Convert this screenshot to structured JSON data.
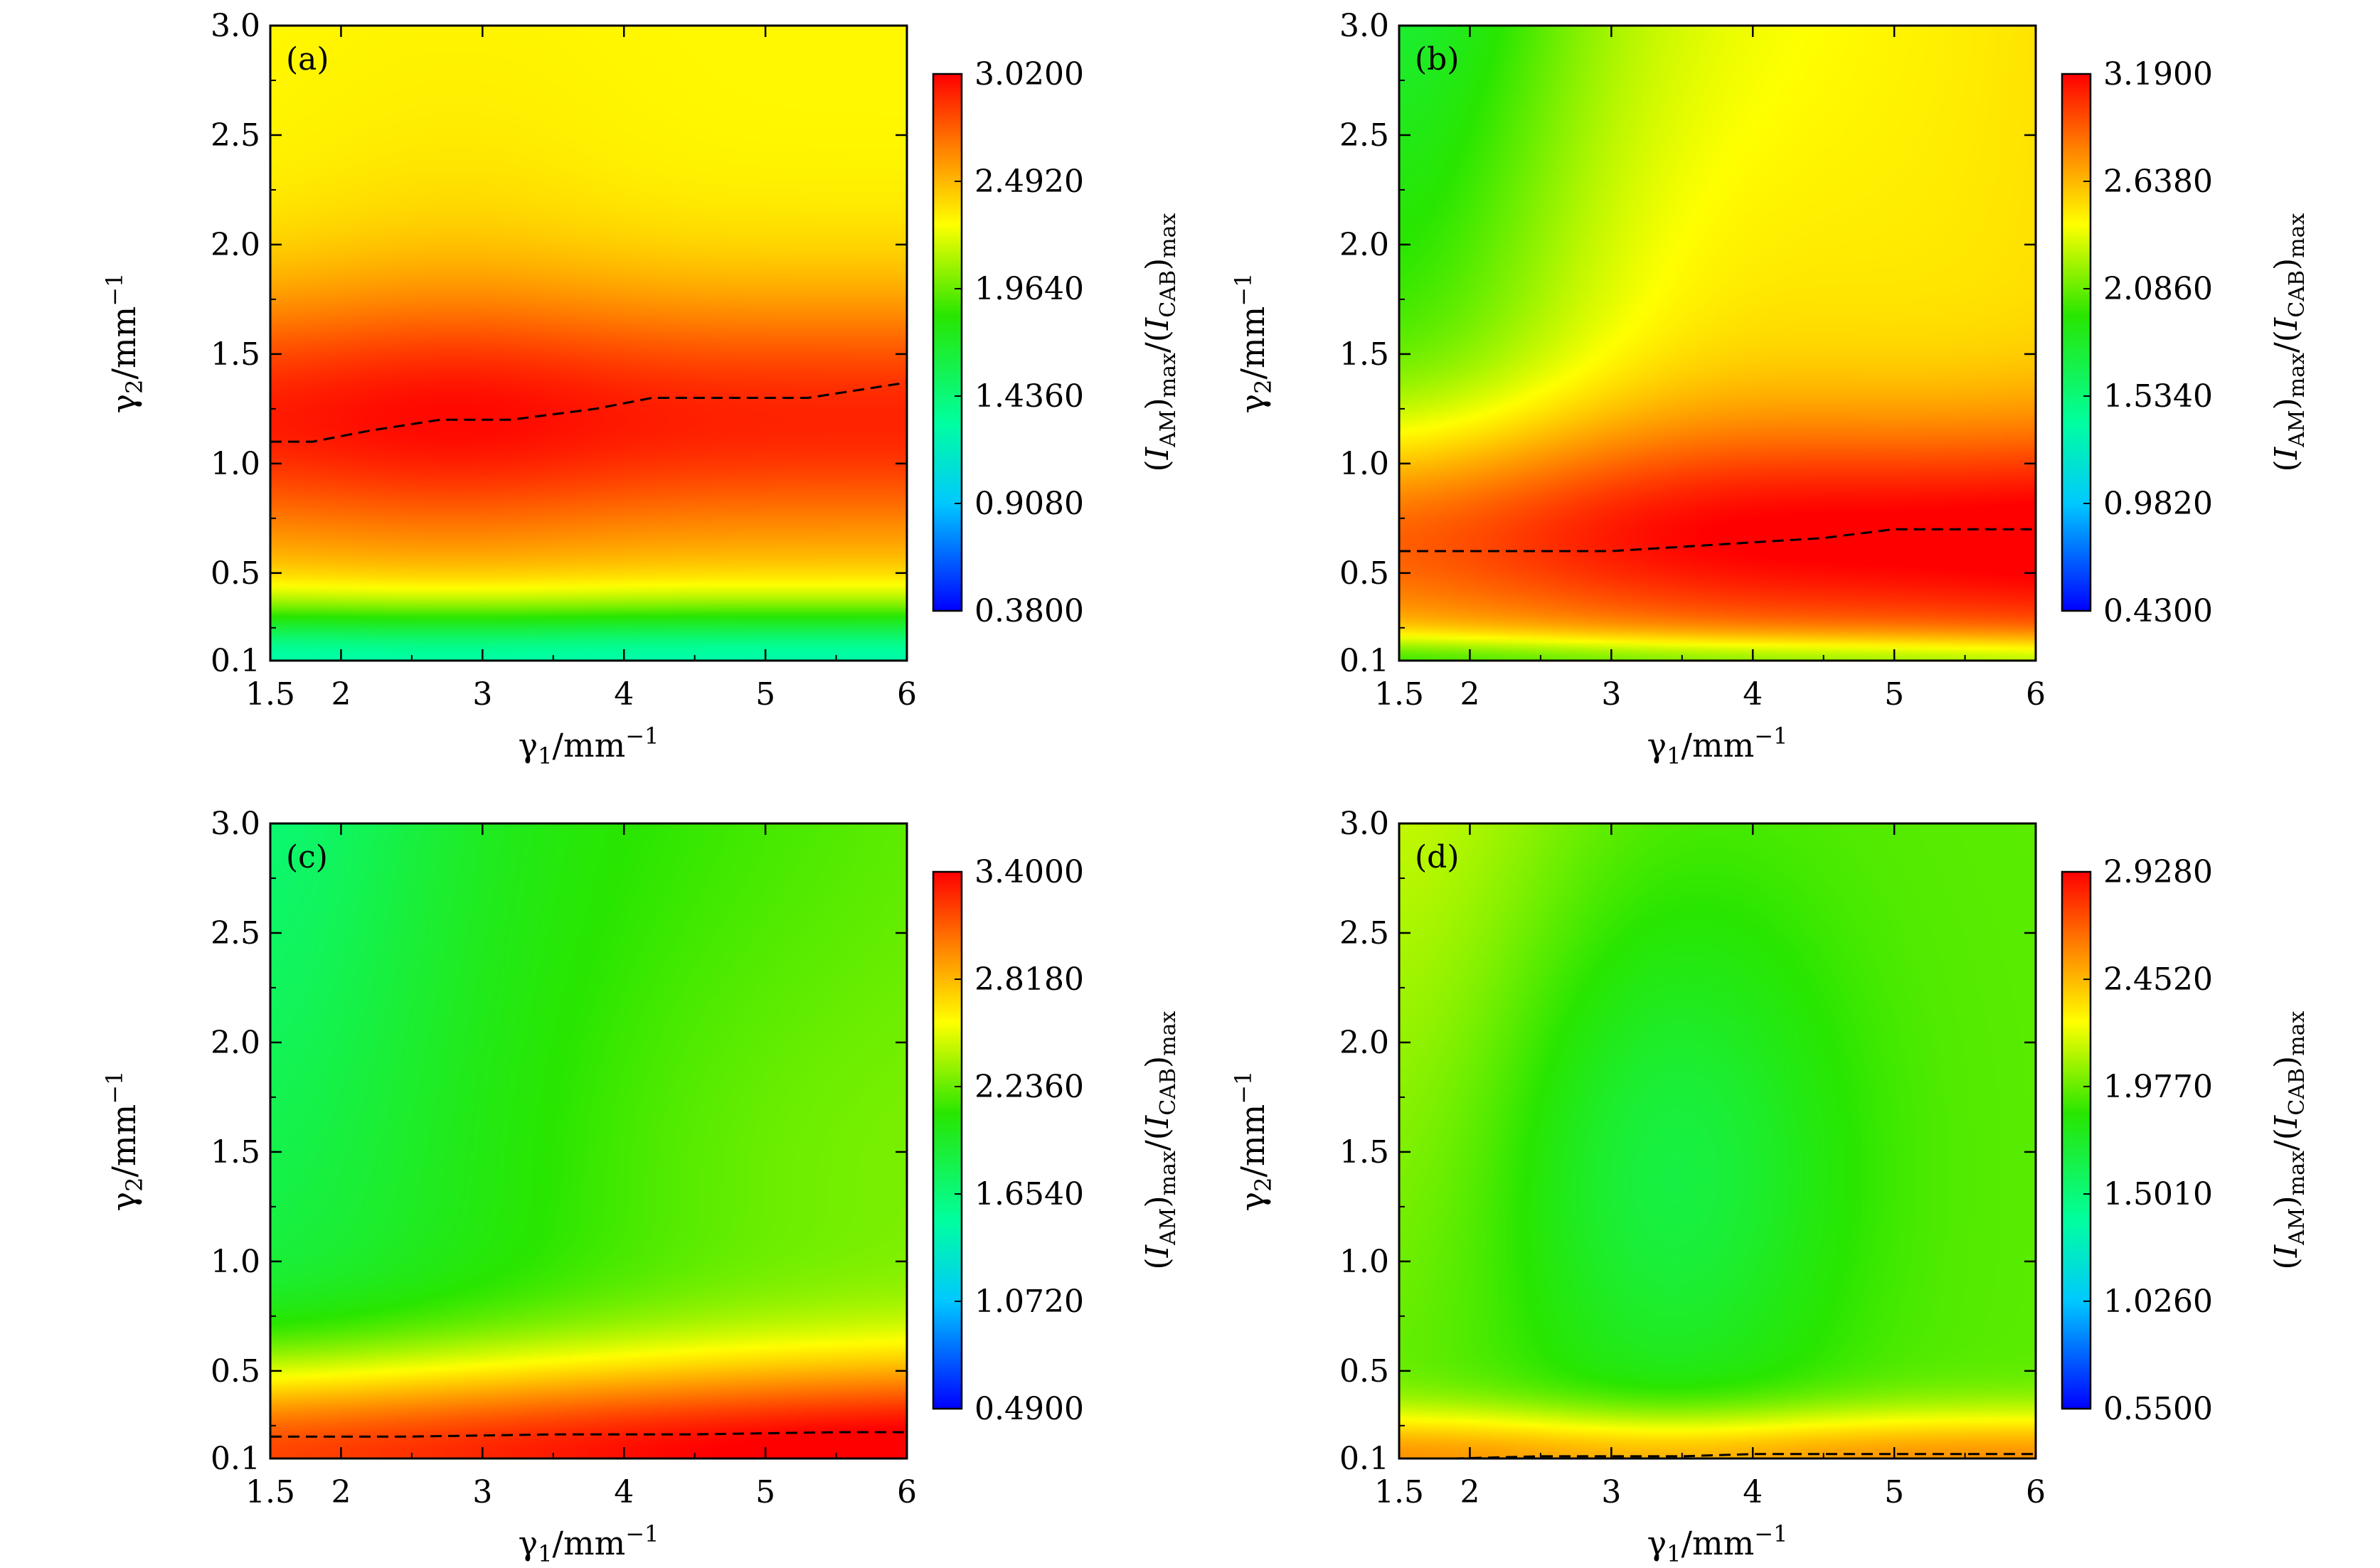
{
  "figure": {
    "x_label_main": "γ",
    "x_label_sub": "1",
    "x_label_unit": "/mm",
    "x_label_exp": "−1",
    "y_label_main": "γ",
    "y_label_sub": "2",
    "y_label_unit": "/mm",
    "y_label_exp": "−1",
    "cb_label_open1": "(",
    "cb_label_I1": "I",
    "cb_label_sub1": "AM",
    "cb_label_close1": ")",
    "cb_label_max1": "max",
    "cb_label_slash": "/(",
    "cb_label_I2": "I",
    "cb_label_sub2": "CAB",
    "cb_label_close2": ")",
    "cb_label_max2": "max"
  },
  "chart_data": [
    {
      "type": "heatmap",
      "panel_label": "(a)",
      "xlim": [
        1.5,
        6
      ],
      "ylim": [
        0.1,
        3.0
      ],
      "xticks": [
        1.5,
        2,
        3,
        4,
        5,
        6
      ],
      "xtick_labels": [
        "1.5",
        "2",
        "3",
        "4",
        "5",
        "6"
      ],
      "yticks": [
        0.1,
        0.5,
        1.0,
        1.5,
        2.0,
        2.5,
        3.0
      ],
      "ytick_labels": [
        "0.1",
        "0.5",
        "1.0",
        "1.5",
        "2.0",
        "2.5",
        "3.0"
      ],
      "colorbar": {
        "min": 0.38,
        "max": 3.02,
        "ticks": [
          0.38,
          0.908,
          1.436,
          1.964,
          2.492,
          3.02
        ],
        "tick_labels": [
          "0.3800",
          "0.9080",
          "1.4360",
          "1.9640",
          "2.4920",
          "3.0200"
        ]
      },
      "field": {
        "base": 2.3,
        "ridge_y": 1.2,
        "ridge_amp": 0.62,
        "ridge_width": 0.6,
        "low_y_drop": 1.05,
        "low_y_scale": 0.25,
        "peak_x": 2.8,
        "peak_amp": 0.08,
        "peak_width": 1.2,
        "x_slope": 0.0,
        "left_top_cool": 0.0
      },
      "optimum_line": {
        "x": [
          1.5,
          1.8,
          2.2,
          2.7,
          3.2,
          3.8,
          4.2,
          4.7,
          5.3,
          6.0
        ],
        "y": [
          1.1,
          1.1,
          1.15,
          1.2,
          1.2,
          1.25,
          1.3,
          1.3,
          1.3,
          1.37
        ]
      }
    },
    {
      "type": "heatmap",
      "panel_label": "(b)",
      "xlim": [
        1.5,
        6
      ],
      "ylim": [
        0.1,
        3.0
      ],
      "xticks": [
        1.5,
        2,
        3,
        4,
        5,
        6
      ],
      "xtick_labels": [
        "1.5",
        "2",
        "3",
        "4",
        "5",
        "6"
      ],
      "yticks": [
        0.1,
        0.5,
        1.0,
        1.5,
        2.0,
        2.5,
        3.0
      ],
      "ytick_labels": [
        "0.1",
        "0.5",
        "1.0",
        "1.5",
        "2.0",
        "2.5",
        "3.0"
      ],
      "colorbar": {
        "min": 0.43,
        "max": 3.19,
        "ticks": [
          0.43,
          0.982,
          1.534,
          2.086,
          2.638,
          3.19
        ],
        "tick_labels": [
          "0.4300",
          "0.9820",
          "1.5340",
          "2.0860",
          "2.6380",
          "3.1900"
        ]
      },
      "field": {
        "base": 2.35,
        "ridge_y": 0.65,
        "ridge_amp": 0.75,
        "ridge_width": 0.55,
        "low_y_drop": 0.5,
        "low_y_scale": 0.12,
        "peak_x": 3.6,
        "peak_amp": 0.12,
        "peak_width": 1.5,
        "x_slope": 0.06,
        "left_top_cool": 0.45
      },
      "optimum_line": {
        "x": [
          1.5,
          2.2,
          3.0,
          3.5,
          4.0,
          4.5,
          5.0,
          5.5,
          6.0
        ],
        "y": [
          0.6,
          0.6,
          0.6,
          0.62,
          0.64,
          0.66,
          0.7,
          0.7,
          0.7
        ]
      }
    },
    {
      "type": "heatmap",
      "panel_label": "(c)",
      "xlim": [
        1.5,
        6
      ],
      "ylim": [
        0.1,
        3.0
      ],
      "xticks": [
        1.5,
        2,
        3,
        4,
        5,
        6
      ],
      "xtick_labels": [
        "1.5",
        "2",
        "3",
        "4",
        "5",
        "6"
      ],
      "yticks": [
        0.1,
        0.5,
        1.0,
        1.5,
        2.0,
        2.5,
        3.0
      ],
      "ytick_labels": [
        "0.1",
        "0.5",
        "1.0",
        "1.5",
        "2.0",
        "2.5",
        "3.0"
      ],
      "colorbar": {
        "min": 0.49,
        "max": 3.4,
        "ticks": [
          0.49,
          1.072,
          1.654,
          2.236,
          2.818,
          3.4
        ],
        "tick_labels": [
          "0.4900",
          "1.0720",
          "1.6540",
          "2.2360",
          "2.8180",
          "3.4000"
        ]
      },
      "field": {
        "base": 2.05,
        "ridge_y": 0.12,
        "ridge_amp": 1.25,
        "ridge_width": 0.45,
        "low_y_drop": 0.0,
        "low_y_scale": 0.1,
        "peak_x": 5.0,
        "peak_amp": 0.1,
        "peak_width": 2.0,
        "x_slope": 0.06,
        "left_top_cool": 0.25
      },
      "optimum_line": {
        "x": [
          1.5,
          2.5,
          3.5,
          4.5,
          5.5,
          6.0
        ],
        "y": [
          0.2,
          0.2,
          0.21,
          0.21,
          0.22,
          0.22
        ]
      }
    },
    {
      "type": "heatmap",
      "panel_label": "(d)",
      "xlim": [
        1.5,
        6
      ],
      "ylim": [
        0.1,
        3.0
      ],
      "xticks": [
        1.5,
        2,
        3,
        4,
        5,
        6
      ],
      "xtick_labels": [
        "1.5",
        "2",
        "3",
        "4",
        "5",
        "6"
      ],
      "yticks": [
        0.1,
        0.5,
        1.0,
        1.5,
        2.0,
        2.5,
        3.0
      ],
      "ytick_labels": [
        "0.1",
        "0.5",
        "1.0",
        "1.5",
        "2.0",
        "2.5",
        "3.0"
      ],
      "colorbar": {
        "min": 0.55,
        "max": 2.928,
        "ticks": [
          0.55,
          1.026,
          1.501,
          1.977,
          2.452,
          2.928
        ],
        "tick_labels": [
          "0.5500",
          "1.0260",
          "1.5010",
          "1.9770",
          "2.4520",
          "2.9280"
        ]
      },
      "field": {
        "base": 1.95,
        "ridge_y": 0.1,
        "ridge_amp": 0.6,
        "ridge_width": 0.22,
        "low_y_drop": 0.0,
        "low_y_scale": 0.1,
        "peak_x": 3.4,
        "peak_amp": -0.3,
        "peak_width": 1.2,
        "x_slope": 0.0,
        "left_top_cool": -0.2
      },
      "optimum_line": {
        "x": [
          1.5,
          1.9,
          2.5,
          3.5,
          4.0,
          5.0,
          6.0
        ],
        "y": [
          0.1,
          0.1,
          0.11,
          0.11,
          0.12,
          0.12,
          0.12
        ]
      }
    }
  ]
}
